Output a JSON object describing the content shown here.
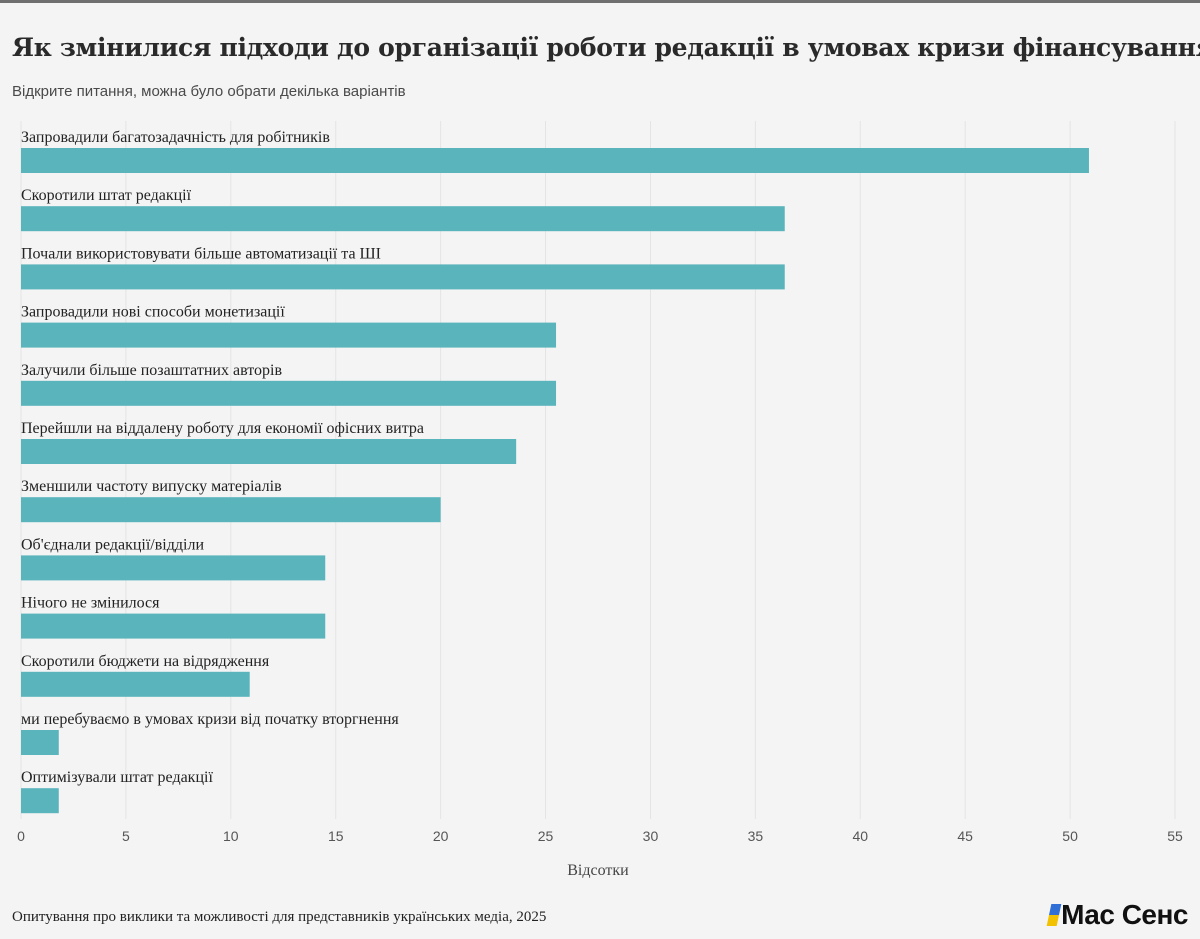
{
  "title": "Як змінилися підходи до організації роботи редакції в умовах кризи фінансування?",
  "subtitle": "Відкрите питання, можна було обрати декілька варіантів",
  "source": "Опитування про виклики та можливості для представників українських медіа, 2025",
  "logo": {
    "text": "Мас Сенс",
    "accent_colors": [
      "#2f6fd6",
      "#f2c200"
    ]
  },
  "chart_data": {
    "type": "bar",
    "orientation": "horizontal",
    "categories": [
      "Запровадили багатозадачність для робітників",
      "Скоротили штат редакції",
      "Почали використовувати більше автоматизації та ШІ",
      "Запровадили нові способи монетизації",
      "Залучили більше позаштатних авторів",
      "Перейшли на віддалену роботу для економії офісних витра",
      "Зменшили частоту випуску матеріалів",
      "Об'єднали редакції/відділи",
      "Нічого не змінилося",
      "Скоротили бюджети на відрядження",
      "ми перебуваємо в умовах кризи від початку вторгнення",
      "Оптимізували штат редакції"
    ],
    "values": [
      50.9,
      36.4,
      36.4,
      25.5,
      25.5,
      23.6,
      20.0,
      14.5,
      14.5,
      10.9,
      1.8,
      1.8
    ],
    "xlabel": "Відсотки",
    "xlim": [
      0,
      55
    ],
    "xticks": [
      0,
      5,
      10,
      15,
      20,
      25,
      30,
      35,
      40,
      45,
      50,
      55
    ],
    "grid": "vertical",
    "bar_color": "#5ab4bc",
    "legend": "none"
  }
}
